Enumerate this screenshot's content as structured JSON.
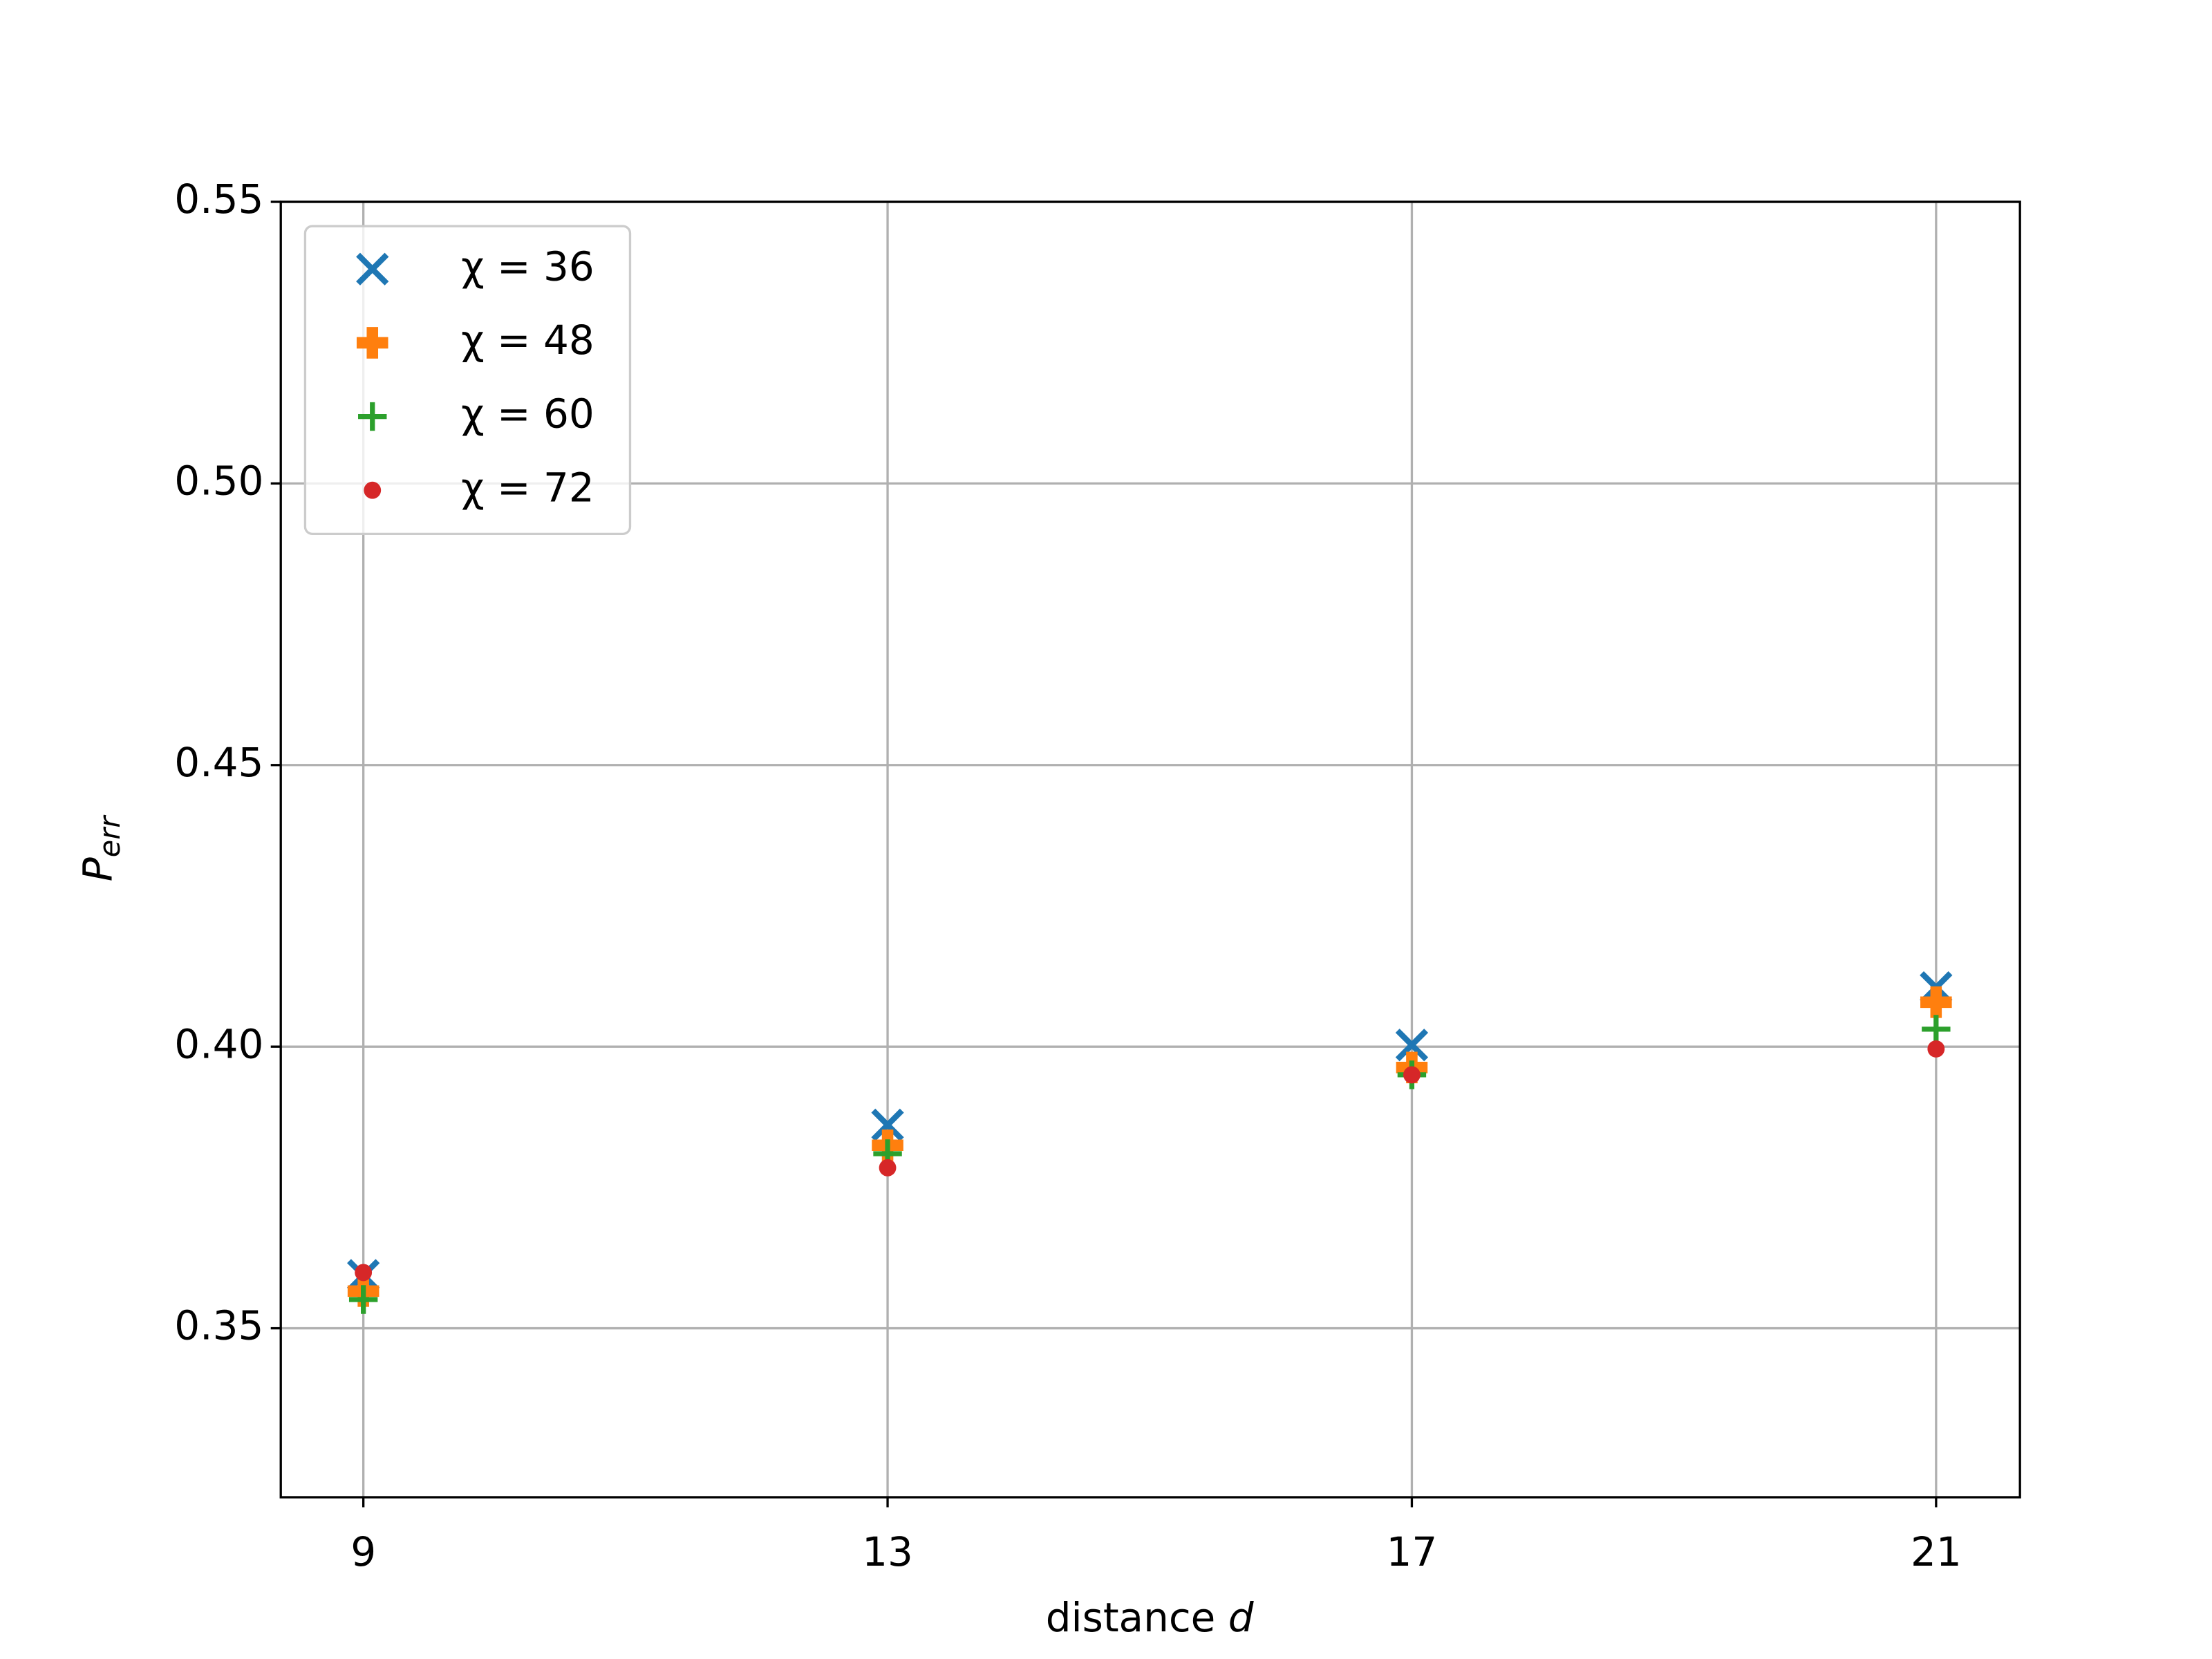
{
  "chart_data": {
    "type": "scatter",
    "xlabel": [
      "distance ",
      "d"
    ],
    "ylabel": [
      "P",
      "err"
    ],
    "x": [
      9,
      13,
      17,
      21
    ],
    "series": [
      {
        "name": "χ = 36",
        "color": "#1f77b4",
        "marker": "x",
        "values": [
          0.3594,
          0.3861,
          0.4003,
          0.4105
        ]
      },
      {
        "name": "χ = 48",
        "color": "#ff7f0e",
        "marker": "P",
        "values": [
          0.3566,
          0.3825,
          0.3963,
          0.4079
        ]
      },
      {
        "name": "χ = 60",
        "color": "#2ca02c",
        "marker": "+",
        "values": [
          0.3551,
          0.381,
          0.395,
          0.4031
        ]
      },
      {
        "name": "χ = 72",
        "color": "#d62728",
        "marker": "o",
        "values": [
          0.3599,
          0.3785,
          0.395,
          0.3996
        ]
      }
    ],
    "xlim": [
      8.37,
      21.64
    ],
    "xticks": [
      9,
      13,
      17,
      21
    ],
    "ylim": [
      0.32,
      0.55
    ],
    "yticks": [
      0.35,
      {
        "value": 0.4,
        "label": "0.40"
      },
      0.45,
      {
        "value": 0.5,
        "label": "0.50"
      },
      0.55
    ],
    "grid": true,
    "legend": "upper left"
  }
}
